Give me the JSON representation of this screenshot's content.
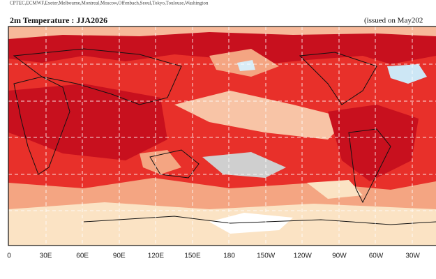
{
  "header": {
    "sources": "CPTEC,ECMWF,Exeter,Melbourne,Montreal,Moscow,Offenbach,Seoul,Tokyo,Toulouse,Washington",
    "title": "2m Temperature : JJA2026",
    "issued": "(issued on May202"
  },
  "axis": {
    "lon_labels": [
      "0",
      "30E",
      "60E",
      "90E",
      "120E",
      "150E",
      "180",
      "150W",
      "120W",
      "90W",
      "60W",
      "30W"
    ]
  }
}
